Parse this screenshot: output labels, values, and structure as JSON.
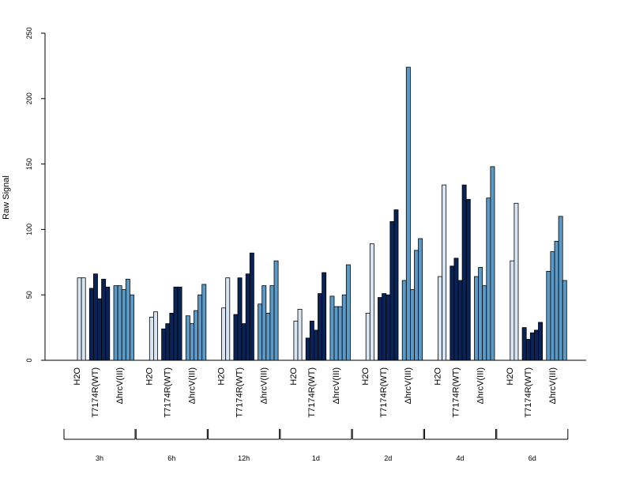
{
  "chart_data": {
    "type": "bar",
    "ylabel": "Raw Signal",
    "ylim": [
      0,
      250
    ],
    "yticks": [
      0,
      50,
      100,
      150,
      200,
      250
    ],
    "grid": false,
    "colors": {
      "H2O": "#d8e6f3",
      "T7174R(WT)": "#0a2357",
      "ΔhrcV(III)": "#5b9ac7"
    },
    "timepoints": [
      "3h",
      "6h",
      "12h",
      "1d",
      "2d",
      "4d",
      "6d"
    ],
    "group_labels": [
      "H2O",
      "T7174R(WT)",
      "ΔhrcV(III)"
    ],
    "data": [
      {
        "time": "3h",
        "H2O": [
          63,
          63
        ],
        "T7174R(WT)": [
          55,
          66,
          47,
          62,
          56
        ],
        "ΔhrcV(III)": [
          57,
          57,
          54,
          62,
          50
        ]
      },
      {
        "time": "6h",
        "H2O": [
          33,
          37
        ],
        "T7174R(WT)": [
          24,
          28,
          36,
          56,
          56
        ],
        "ΔhrcV(III)": [
          34,
          28,
          38,
          50,
          58
        ]
      },
      {
        "time": "12h",
        "H2O": [
          40,
          63
        ],
        "T7174R(WT)": [
          35,
          63,
          28,
          66,
          82
        ],
        "ΔhrcV(III)": [
          43,
          57,
          36,
          57,
          76
        ]
      },
      {
        "time": "1d",
        "H2O": [
          30,
          39
        ],
        "T7174R(WT)": [
          17,
          30,
          23,
          51,
          67
        ],
        "ΔhrcV(III)": [
          49,
          41,
          41,
          50,
          73
        ]
      },
      {
        "time": "2d",
        "H2O": [
          36,
          89
        ],
        "T7174R(WT)": [
          48,
          51,
          50,
          106,
          115
        ],
        "ΔhrcV(III)": [
          61,
          224,
          54,
          84,
          93
        ]
      },
      {
        "time": "4d",
        "H2O": [
          64,
          134
        ],
        "T7174R(WT)": [
          72,
          78,
          61,
          134,
          123
        ],
        "ΔhrcV(III)": [
          64,
          71,
          57,
          124,
          148
        ]
      },
      {
        "time": "6d",
        "H2O": [
          76,
          120
        ],
        "T7174R(WT)": [
          25,
          16,
          21,
          23,
          29
        ],
        "ΔhrcV(III)": [
          68,
          83,
          91,
          110,
          61
        ]
      }
    ]
  }
}
